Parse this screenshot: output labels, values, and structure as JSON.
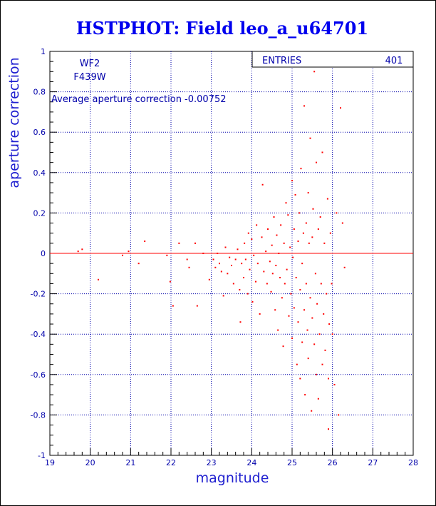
{
  "chart_data": {
    "type": "scatter",
    "title": "HSTPHOT: Field leo_a_u64701",
    "xlabel": "magnitude",
    "ylabel": "aperture correction",
    "xlim": [
      19,
      28
    ],
    "ylim": [
      -1,
      1
    ],
    "x_ticks": [
      "19",
      "20",
      "21",
      "22",
      "23",
      "24",
      "25",
      "26",
      "27",
      "28"
    ],
    "y_ticks": [
      "-1",
      "-0.8",
      "-0.6",
      "-0.4",
      "-0.2",
      "0",
      "0.2",
      "0.4",
      "0.6",
      "0.8",
      "1"
    ],
    "grid": true,
    "stats_box": {
      "label": "ENTRIES",
      "value": "401"
    },
    "annotations": [
      "WF2",
      "F439W",
      "Average aperture correction -0.00752"
    ],
    "reference_line_y": 0,
    "marker_color": "#ff0000",
    "axis_color": "#0000aa",
    "points": [
      [
        19.7,
        0.01
      ],
      [
        19.8,
        0.02
      ],
      [
        20.2,
        -0.13
      ],
      [
        20.8,
        -0.01
      ],
      [
        20.95,
        0.01
      ],
      [
        21.2,
        -0.05
      ],
      [
        21.35,
        0.06
      ],
      [
        21.9,
        -0.01
      ],
      [
        21.98,
        -0.14
      ],
      [
        22.05,
        -0.26
      ],
      [
        22.2,
        0.05
      ],
      [
        22.4,
        -0.03
      ],
      [
        22.45,
        -0.07
      ],
      [
        22.6,
        0.05
      ],
      [
        22.65,
        -0.26
      ],
      [
        22.8,
        0.0
      ],
      [
        22.95,
        -0.13
      ],
      [
        23.05,
        -0.03
      ],
      [
        23.1,
        -0.07
      ],
      [
        23.15,
        0.0
      ],
      [
        23.2,
        -0.05
      ],
      [
        23.25,
        -0.09
      ],
      [
        23.3,
        -0.21
      ],
      [
        23.35,
        0.03
      ],
      [
        23.4,
        -0.1
      ],
      [
        23.45,
        -0.02
      ],
      [
        23.5,
        -0.06
      ],
      [
        23.55,
        -0.15
      ],
      [
        23.6,
        -0.03
      ],
      [
        23.65,
        0.02
      ],
      [
        23.7,
        -0.18
      ],
      [
        23.72,
        -0.34
      ],
      [
        23.75,
        -0.05
      ],
      [
        23.8,
        -0.12
      ],
      [
        23.82,
        0.05
      ],
      [
        23.85,
        -0.03
      ],
      [
        23.9,
        -0.2
      ],
      [
        23.92,
        0.1
      ],
      [
        23.95,
        -0.08
      ],
      [
        24.0,
        0.07
      ],
      [
        24.02,
        -0.24
      ],
      [
        24.05,
        -0.01
      ],
      [
        24.1,
        -0.14
      ],
      [
        24.12,
        0.14
      ],
      [
        24.15,
        -0.05
      ],
      [
        24.2,
        -0.3
      ],
      [
        24.25,
        0.08
      ],
      [
        24.27,
        0.34
      ],
      [
        24.3,
        -0.09
      ],
      [
        24.35,
        0.01
      ],
      [
        24.38,
        -0.15
      ],
      [
        24.4,
        0.12
      ],
      [
        24.45,
        -0.04
      ],
      [
        24.48,
        -0.19
      ],
      [
        24.5,
        0.04
      ],
      [
        24.52,
        -0.1
      ],
      [
        24.55,
        0.18
      ],
      [
        24.58,
        -0.28
      ],
      [
        24.6,
        -0.06
      ],
      [
        24.62,
        0.09
      ],
      [
        24.65,
        -0.38
      ],
      [
        24.67,
        0.0
      ],
      [
        24.7,
        -0.12
      ],
      [
        24.72,
        0.14
      ],
      [
        24.75,
        -0.22
      ],
      [
        24.78,
        -0.46
      ],
      [
        24.8,
        0.05
      ],
      [
        24.82,
        -0.15
      ],
      [
        24.85,
        0.25
      ],
      [
        24.87,
        -0.08
      ],
      [
        24.9,
        0.19
      ],
      [
        24.92,
        -0.31
      ],
      [
        24.95,
        0.03
      ],
      [
        24.97,
        -0.2
      ],
      [
        25.0,
        0.36
      ],
      [
        25.0,
        -0.42
      ],
      [
        25.02,
        -0.02
      ],
      [
        25.05,
        0.12
      ],
      [
        25.05,
        -0.27
      ],
      [
        25.08,
        0.29
      ],
      [
        25.1,
        -0.12
      ],
      [
        25.12,
        -0.55
      ],
      [
        25.15,
        0.06
      ],
      [
        25.15,
        -0.34
      ],
      [
        25.18,
        0.2
      ],
      [
        25.2,
        -0.18
      ],
      [
        25.2,
        -0.62
      ],
      [
        25.22,
        0.42
      ],
      [
        25.25,
        -0.05
      ],
      [
        25.25,
        -0.44
      ],
      [
        25.28,
        0.1
      ],
      [
        25.3,
        -0.28
      ],
      [
        25.3,
        0.73
      ],
      [
        25.32,
        -0.7
      ],
      [
        25.35,
        0.15
      ],
      [
        25.35,
        -0.15
      ],
      [
        25.38,
        -0.38
      ],
      [
        25.4,
        0.3
      ],
      [
        25.4,
        -0.52
      ],
      [
        25.42,
        0.05
      ],
      [
        25.45,
        -0.22
      ],
      [
        25.45,
        0.57
      ],
      [
        25.48,
        -0.78
      ],
      [
        25.5,
        0.08
      ],
      [
        25.5,
        -0.32
      ],
      [
        25.52,
        0.22
      ],
      [
        25.55,
        -0.45
      ],
      [
        25.55,
        0.9
      ],
      [
        25.58,
        -0.1
      ],
      [
        25.6,
        -0.6
      ],
      [
        25.6,
        0.45
      ],
      [
        25.62,
        -0.25
      ],
      [
        25.65,
        0.12
      ],
      [
        25.65,
        -0.72
      ],
      [
        25.68,
        -0.4
      ],
      [
        25.7,
        0.18
      ],
      [
        25.72,
        -0.15
      ],
      [
        25.75,
        -0.55
      ],
      [
        25.75,
        0.5
      ],
      [
        25.78,
        -0.3
      ],
      [
        25.8,
        0.05
      ],
      [
        25.82,
        -0.48
      ],
      [
        25.85,
        -0.2
      ],
      [
        25.88,
        0.27
      ],
      [
        25.9,
        -0.62
      ],
      [
        25.92,
        -0.35
      ],
      [
        25.95,
        0.1
      ],
      [
        25.98,
        -0.15
      ],
      [
        26.0,
        -0.4
      ],
      [
        26.05,
        -0.65
      ],
      [
        26.1,
        0.2
      ],
      [
        26.15,
        -0.8
      ],
      [
        26.2,
        0.72
      ],
      [
        26.25,
        0.15
      ],
      [
        26.3,
        -0.07
      ],
      [
        25.9,
        -0.87
      ]
    ]
  }
}
